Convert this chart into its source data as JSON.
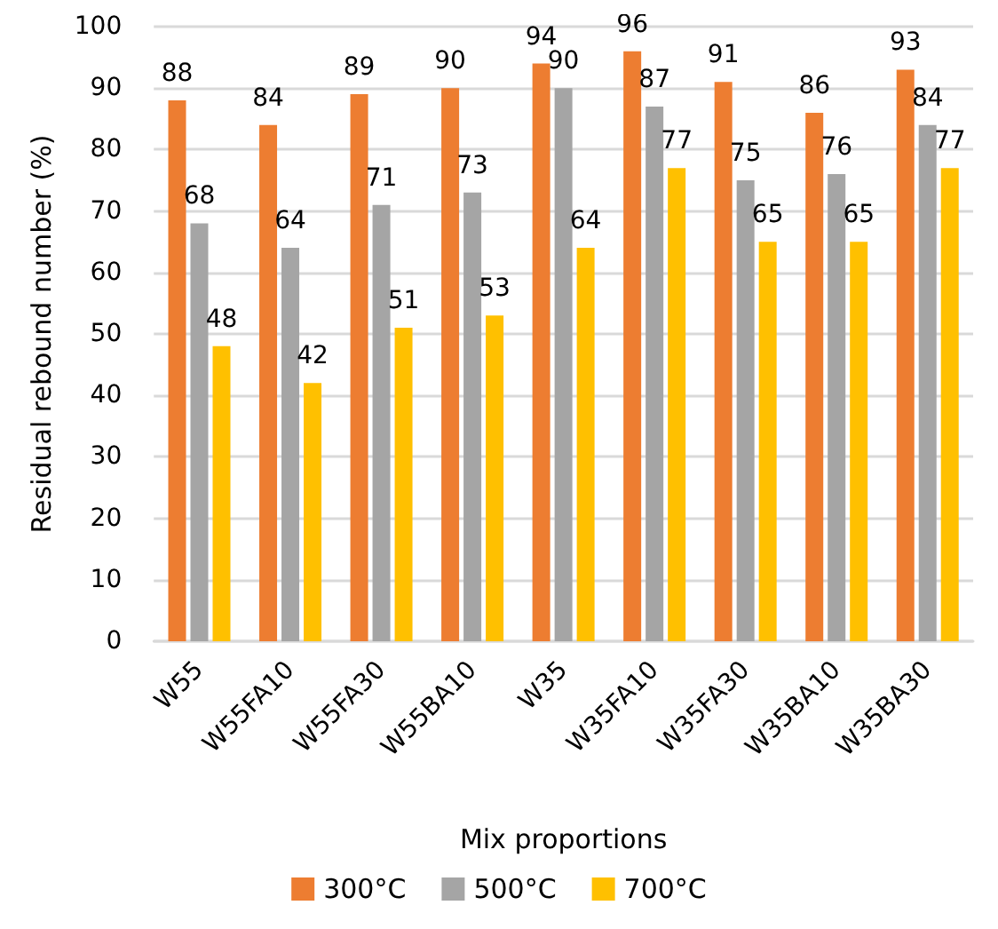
{
  "chart_data": {
    "type": "bar",
    "xlabel": "Mix proportions",
    "ylabel": "Residual rebound number (%)",
    "categories": [
      "W55",
      "W55FA10",
      "W55FA30",
      "W55BA10",
      "W35",
      "W35FA10",
      "W35FA30",
      "W35BA10",
      "W35BA30"
    ],
    "series": [
      {
        "name": "300°C",
        "color": "#ed7d31",
        "values": [
          88,
          84,
          89,
          90,
          94,
          96,
          91,
          86,
          93
        ]
      },
      {
        "name": "500°C",
        "color": "#a5a5a5",
        "values": [
          68,
          64,
          71,
          73,
          90,
          87,
          75,
          76,
          84
        ]
      },
      {
        "name": "700°C",
        "color": "#ffc000",
        "values": [
          48,
          42,
          51,
          53,
          64,
          77,
          65,
          65,
          77
        ]
      }
    ],
    "ylim": [
      0,
      100
    ],
    "yticks": [
      0,
      10,
      20,
      30,
      40,
      50,
      60,
      70,
      80,
      90,
      100
    ],
    "grid": "y",
    "legend": "bottom",
    "data_labels": true
  }
}
